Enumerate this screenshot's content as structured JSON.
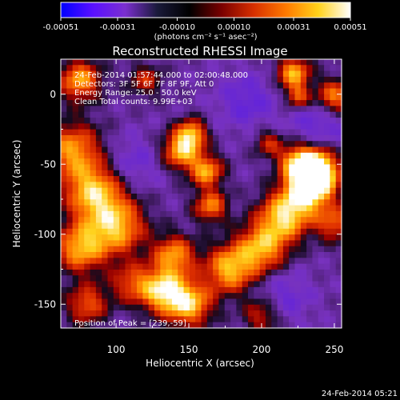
{
  "chart_data": {
    "type": "heatmap",
    "title": "Reconstructed RHESSI Image",
    "xlabel": "Heliocentric X (arcsec)",
    "ylabel": "Heliocentric Y (arcsec)",
    "xlim": [
      62,
      255
    ],
    "ylim": [
      -167,
      25
    ],
    "x_ticks": [
      100,
      150,
      200,
      250
    ],
    "y_ticks": [
      0,
      -50,
      -100,
      -150
    ],
    "colorbar": {
      "min": -0.00051,
      "max": 0.00051,
      "ticks": [
        "-0.00051",
        "-0.00031",
        "-0.00010",
        "0.00010",
        "0.00031",
        "0.00051"
      ],
      "tick_values": [
        -0.00051,
        -0.00031,
        -0.0001,
        0.0001,
        0.00031,
        0.00051
      ],
      "label": "(photons cm⁻² s⁻¹ asec⁻²)",
      "colors": [
        "#0000ff",
        "#5a10ff",
        "#7b2fd0",
        "#1a1a3a",
        "#000000",
        "#7a0000",
        "#d83000",
        "#ff7a00",
        "#ffd21a",
        "#ffffff"
      ]
    },
    "info_lines": [
      "24-Feb-2014 01:57:44.000 to 02:00:48.000",
      "Detectors: 3F 5F 6F 7F 8F 9F, Att 0",
      "Energy Range: 25.0 - 50.0 keV",
      "Clean    Total counts: 9.99E+03"
    ],
    "peak_label": "Position of Peak = [239,-59]",
    "peak": [
      239,
      -59
    ],
    "features": [
      {
        "x": 75,
        "y": 10,
        "amp": 0.8,
        "s": 10
      },
      {
        "x": 70,
        "y": -40,
        "amp": 0.75,
        "s": 14
      },
      {
        "x": 85,
        "y": -70,
        "amp": 0.9,
        "s": 14
      },
      {
        "x": 100,
        "y": -95,
        "amp": 0.85,
        "s": 14
      },
      {
        "x": 75,
        "y": -110,
        "amp": 0.8,
        "s": 12
      },
      {
        "x": 80,
        "y": -150,
        "amp": 0.6,
        "s": 10
      },
      {
        "x": 110,
        "y": -135,
        "amp": 0.5,
        "s": 10
      },
      {
        "x": 120,
        "y": 10,
        "amp": 0.45,
        "s": 8
      },
      {
        "x": 145,
        "y": -40,
        "amp": 0.9,
        "s": 9
      },
      {
        "x": 152,
        "y": -28,
        "amp": 0.75,
        "s": 7
      },
      {
        "x": 162,
        "y": -55,
        "amp": 0.8,
        "s": 8
      },
      {
        "x": 165,
        "y": -80,
        "amp": 0.7,
        "s": 8
      },
      {
        "x": 140,
        "y": -115,
        "amp": 0.75,
        "s": 10
      },
      {
        "x": 132,
        "y": -140,
        "amp": 0.95,
        "s": 11
      },
      {
        "x": 150,
        "y": -150,
        "amp": 0.9,
        "s": 11
      },
      {
        "x": 178,
        "y": -125,
        "amp": 0.85,
        "s": 12
      },
      {
        "x": 200,
        "y": -110,
        "amp": 0.8,
        "s": 12
      },
      {
        "x": 215,
        "y": -88,
        "amp": 0.9,
        "s": 12
      },
      {
        "x": 230,
        "y": -70,
        "amp": 0.95,
        "s": 11
      },
      {
        "x": 239,
        "y": -59,
        "amp": 1.0,
        "s": 10
      },
      {
        "x": 235,
        "y": -50,
        "amp": 0.8,
        "s": 10
      },
      {
        "x": 222,
        "y": -48,
        "amp": 0.55,
        "s": 8
      },
      {
        "x": 250,
        "y": -92,
        "amp": 0.6,
        "s": 9
      },
      {
        "x": 222,
        "y": 15,
        "amp": 0.85,
        "s": 8
      },
      {
        "x": 225,
        "y": -2,
        "amp": 0.6,
        "s": 6
      },
      {
        "x": 250,
        "y": -2,
        "amp": 0.75,
        "s": 9
      },
      {
        "x": 205,
        "y": -35,
        "amp": 0.45,
        "s": 7
      },
      {
        "x": 200,
        "y": -158,
        "amp": 0.5,
        "s": 9
      },
      {
        "x": 190,
        "y": -5,
        "amp": -0.3,
        "s": 14
      },
      {
        "x": 240,
        "y": -20,
        "amp": -0.3,
        "s": 14
      },
      {
        "x": 110,
        "y": -50,
        "amp": -0.25,
        "s": 14
      },
      {
        "x": 215,
        "y": -145,
        "amp": -0.25,
        "s": 14
      }
    ]
  },
  "footer_timestamp": "24-Feb-2014 05:21"
}
